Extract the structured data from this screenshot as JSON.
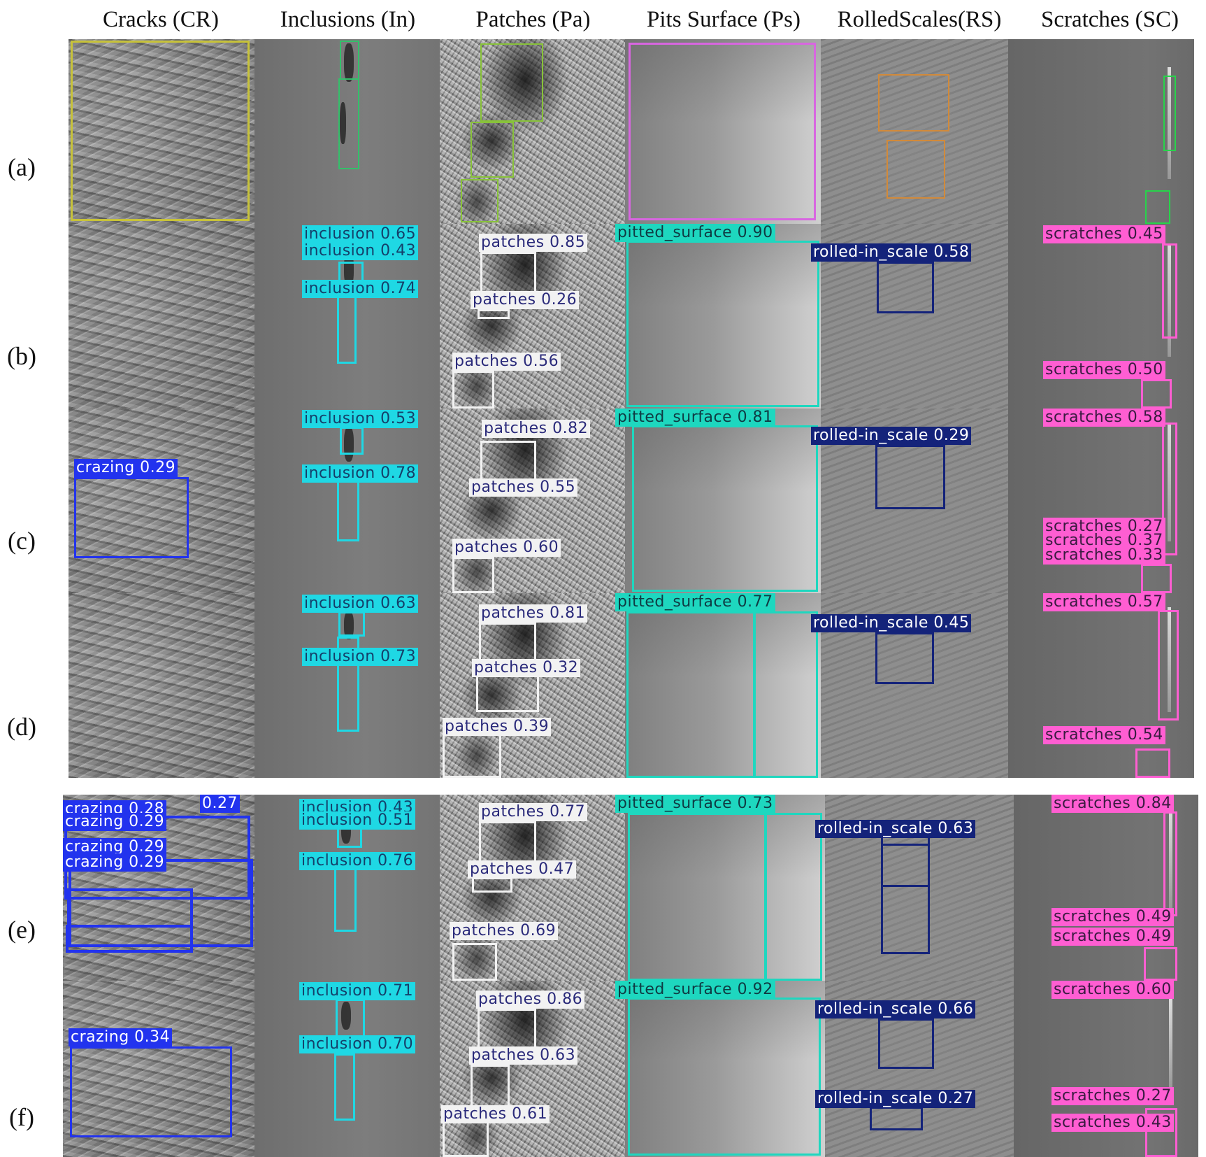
{
  "columns": [
    {
      "key": "cr",
      "label": "Cracks (CR)"
    },
    {
      "key": "in",
      "label": "Inclusions (In)"
    },
    {
      "key": "pa",
      "label": "Patches (Pa)"
    },
    {
      "key": "ps",
      "label": "Pits Surface (Ps)"
    },
    {
      "key": "rs",
      "label": "RolledScales(RS)"
    },
    {
      "key": "sc",
      "label": "Scratches (SC)"
    }
  ],
  "rows": [
    {
      "label": "(a)"
    },
    {
      "label": "(b)"
    },
    {
      "label": "(c)"
    },
    {
      "label": "(d)"
    },
    {
      "label": "(e)"
    },
    {
      "label": "(f)"
    }
  ],
  "colors": {
    "crazing": "#2233ee",
    "inclusion": "#1fd8e4",
    "patches": "#f2f2f2",
    "pitted_surface": "#1ed7bf",
    "rolled_in_scale": "#14237a",
    "scratches": "#ff5ed2"
  },
  "detections": {
    "b": {
      "in": [
        "inclusion 0.65",
        "inclusion 0.43",
        "inclusion 0.74"
      ],
      "pa": [
        "patches 0.85",
        "patches 0.26",
        "patches 0.56"
      ],
      "ps": [
        "pitted_surface 0.90"
      ],
      "rs": [
        "rolled-in_scale 0.58"
      ],
      "sc": [
        "scratches 0.45",
        "scratches 0.50"
      ]
    },
    "c": {
      "cr": [
        "crazing 0.29"
      ],
      "in": [
        "inclusion 0.53",
        "inclusion 0.78"
      ],
      "pa": [
        "patches 0.82",
        "patches 0.55",
        "patches 0.60"
      ],
      "ps": [
        "pitted_surface 0.81"
      ],
      "rs": [
        "rolled-in_scale 0.29"
      ],
      "sc": [
        "scratches 0.58",
        "scratches 0.27",
        "scratches 0.37",
        "scratches 0.33"
      ]
    },
    "d": {
      "in": [
        "inclusion 0.63",
        "inclusion 0.73"
      ],
      "pa": [
        "patches 0.81",
        "patches 0.32",
        "patches 0.39"
      ],
      "ps": [
        "pitted_surface 0.77"
      ],
      "rs": [
        "rolled-in_scale 0.45"
      ],
      "sc": [
        "scratches 0.57",
        "scratches 0.54"
      ]
    },
    "e": {
      "cr": [
        "crazing 0.28",
        "0.27",
        "crazing 0.29",
        "crazing 0.29",
        "crazing 0.29"
      ],
      "in": [
        "inclusion 0.43",
        "inclusion 0.51",
        "inclusion 0.76"
      ],
      "pa": [
        "patches 0.77",
        "patches 0.47",
        "patches 0.69"
      ],
      "ps": [
        "pitted_surface 0.73"
      ],
      "rs": [
        "rolled-in_scale 0.63"
      ],
      "sc": [
        "scratches 0.84",
        "scratches 0.49",
        "scratches 0.49"
      ]
    },
    "f": {
      "cr": [
        "crazing 0.34"
      ],
      "in": [
        "inclusion 0.71",
        "inclusion 0.70"
      ],
      "pa": [
        "patches 0.86",
        "patches 0.63",
        "patches 0.61"
      ],
      "ps": [
        "pitted_surface 0.92"
      ],
      "rs": [
        "rolled-in_scale 0.66",
        "rolled-in_scale 0.27"
      ],
      "sc": [
        "scratches 0.60",
        "scratches 0.27",
        "scratches 0.43"
      ]
    }
  }
}
